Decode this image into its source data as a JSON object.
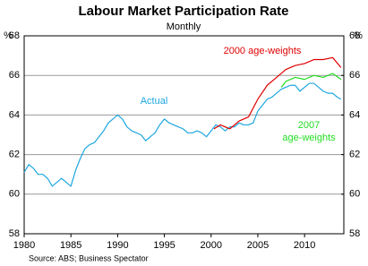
{
  "chart_data": {
    "type": "line",
    "title": "Labour Market Participation Rate",
    "subtitle": "Monthly",
    "y_label": "%",
    "y2_label": "%",
    "source": "Source: ABS; Business Spectator",
    "xlim": [
      1980,
      2014.2
    ],
    "xticks": [
      1980,
      1985,
      1990,
      1995,
      2000,
      2005,
      2010
    ],
    "ylim": [
      58,
      68
    ],
    "yticks": [
      58,
      60,
      62,
      64,
      66,
      68
    ],
    "y2lim": [
      58,
      68
    ],
    "y2ticks": [
      58,
      60,
      62,
      64,
      66,
      68
    ],
    "grid": true,
    "series": [
      {
        "name": "Actual",
        "color": "#1ea7e1",
        "x": [
          1980,
          1980.5,
          1981,
          1981.5,
          1982,
          1982.5,
          1983,
          1983.5,
          1984,
          1984.5,
          1985,
          1985.5,
          1986,
          1986.5,
          1987,
          1987.5,
          1988,
          1988.5,
          1989,
          1989.5,
          1990,
          1990.5,
          1991,
          1991.5,
          1992,
          1992.5,
          1993,
          1993.5,
          1994,
          1994.5,
          1995,
          1995.5,
          1996,
          1996.5,
          1997,
          1997.5,
          1998,
          1998.5,
          1999,
          1999.5,
          2000,
          2000.5,
          2001,
          2001.5,
          2002,
          2002.5,
          2003,
          2003.5,
          2004,
          2004.5,
          2005,
          2005.5,
          2006,
          2006.5,
          2007,
          2007.5,
          2008,
          2008.5,
          2009,
          2009.5,
          2010,
          2010.5,
          2011,
          2011.5,
          2012,
          2012.5,
          2013,
          2013.5,
          2013.9
        ],
        "values": [
          61.1,
          61.5,
          61.3,
          61.0,
          61.0,
          60.8,
          60.4,
          60.6,
          60.8,
          60.6,
          60.4,
          61.2,
          61.8,
          62.3,
          62.5,
          62.6,
          62.9,
          63.2,
          63.6,
          63.8,
          64.0,
          63.8,
          63.4,
          63.2,
          63.1,
          63.0,
          62.7,
          62.9,
          63.1,
          63.5,
          63.8,
          63.6,
          63.5,
          63.4,
          63.3,
          63.1,
          63.1,
          63.2,
          63.1,
          62.9,
          63.2,
          63.5,
          63.4,
          63.2,
          63.4,
          63.4,
          63.6,
          63.5,
          63.5,
          63.6,
          64.2,
          64.5,
          64.8,
          64.9,
          65.1,
          65.3,
          65.4,
          65.5,
          65.5,
          65.2,
          65.4,
          65.6,
          65.6,
          65.4,
          65.2,
          65.1,
          65.1,
          64.9,
          64.8
        ]
      },
      {
        "name": "2000 age-weights",
        "color": "#e00000",
        "x": [
          2000.3,
          2001,
          2002,
          2003,
          2004,
          2005,
          2006,
          2007,
          2008,
          2009,
          2010,
          2011,
          2012,
          2013,
          2013.9
        ],
        "values": [
          63.3,
          63.5,
          63.3,
          63.7,
          63.9,
          64.8,
          65.5,
          65.9,
          66.3,
          66.5,
          66.6,
          66.8,
          66.8,
          66.9,
          66.4
        ]
      },
      {
        "name": "2007 age-weights",
        "color": "#22dd22",
        "x": [
          2007.5,
          2008,
          2009,
          2010,
          2011,
          2012,
          2013,
          2013.9
        ],
        "values": [
          65.4,
          65.7,
          65.9,
          65.8,
          66.0,
          65.9,
          66.1,
          65.8
        ]
      }
    ],
    "annotations": [
      {
        "lines": [
          "2000 age-weights"
        ],
        "color": "#e00000"
      },
      {
        "lines": [
          "Actual"
        ],
        "color": "#1ea7e1"
      },
      {
        "lines": [
          "2007",
          "age-weights"
        ],
        "color": "#22dd22"
      }
    ]
  }
}
